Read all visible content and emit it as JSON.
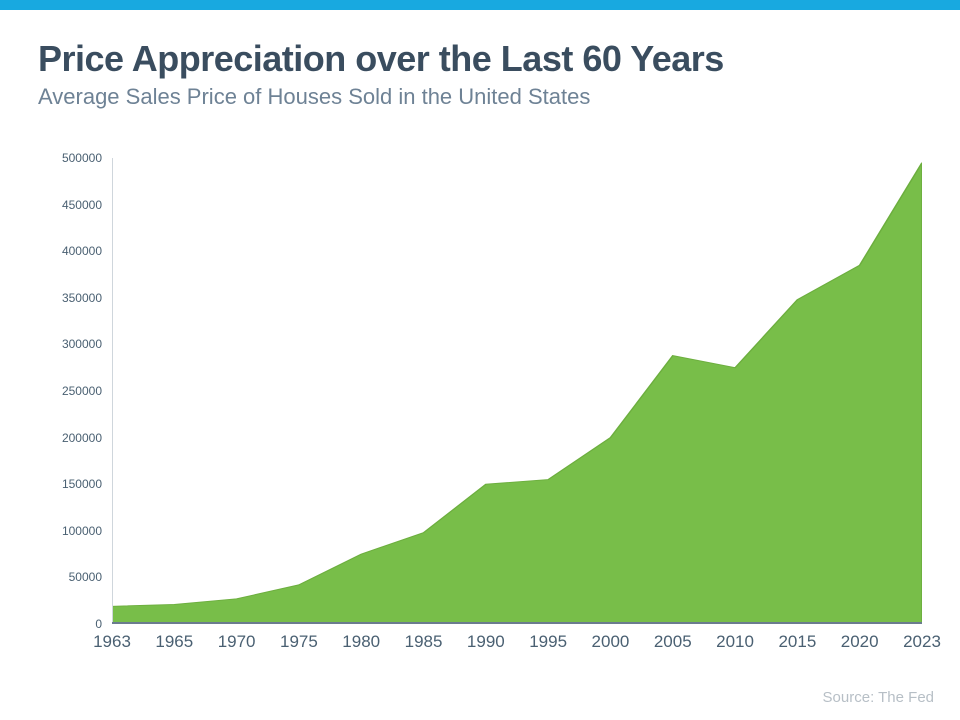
{
  "frame": {
    "top_border_color": "#18a9e0",
    "background_color": "#ffffff"
  },
  "header": {
    "title": "Price Appreciation over the Last 60 Years",
    "title_color": "#3a4d5f",
    "subtitle": "Average Sales Price of Houses Sold in the United States",
    "subtitle_color": "#6e8295"
  },
  "chart": {
    "type": "area",
    "x_labels": [
      "1963",
      "1965",
      "1970",
      "1975",
      "1980",
      "1985",
      "1990",
      "1995",
      "2000",
      "2005",
      "2010",
      "2015",
      "2020",
      "2023"
    ],
    "values": [
      19000,
      21000,
      27000,
      42000,
      75000,
      98000,
      150000,
      155000,
      200000,
      288000,
      275000,
      348000,
      385000,
      495000
    ],
    "ylim": [
      0,
      500000
    ],
    "ytick_step": 50000,
    "y_ticks": [
      0,
      50000,
      100000,
      150000,
      200000,
      250000,
      300000,
      350000,
      400000,
      450000,
      500000
    ],
    "x_font_size": 17,
    "y_font_size": 12,
    "label_color": "#4a6072",
    "fill_color": "#78be49",
    "stroke_color": "#6cae3e",
    "axis_color": "#6b7c8e",
    "grid_on": false,
    "background_color": "#ffffff"
  },
  "footer": {
    "source": "Source: The Fed",
    "source_color": "#b7bfc6"
  }
}
